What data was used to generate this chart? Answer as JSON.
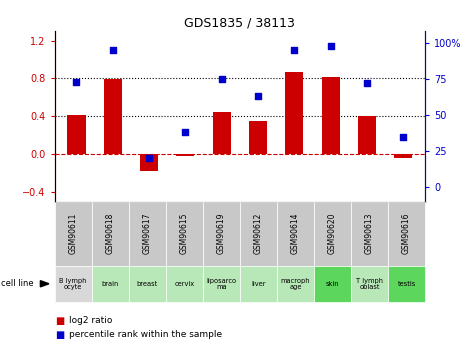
{
  "title": "GDS1835 / 38113",
  "samples": [
    "GSM90611",
    "GSM90618",
    "GSM90617",
    "GSM90615",
    "GSM90619",
    "GSM90612",
    "GSM90614",
    "GSM90620",
    "GSM90613",
    "GSM90616"
  ],
  "cell_lines": [
    "B lymph\nocyte",
    "brain",
    "breast",
    "cervix",
    "liposarco\nma",
    "liver",
    "macroph\nage",
    "skin",
    "T lymph\noblast",
    "testis"
  ],
  "cell_line_colors": [
    "#d8d8d8",
    "#b8e8b8",
    "#b8e8b8",
    "#b8e8b8",
    "#b8e8b8",
    "#b8e8b8",
    "#b8e8b8",
    "#5cd65c",
    "#b8e8b8",
    "#5cd65c"
  ],
  "log2_ratio": [
    0.42,
    0.79,
    -0.18,
    -0.02,
    0.45,
    0.35,
    0.87,
    0.82,
    0.4,
    -0.04
  ],
  "percentile_rank": [
    73,
    95,
    20,
    38,
    75,
    63,
    95,
    98,
    72,
    35
  ],
  "bar_color": "#cc0000",
  "dot_color": "#0000cc",
  "ylim_left": [
    -0.5,
    1.3
  ],
  "ylim_right": [
    -10.42,
    108.33
  ],
  "yticks_left": [
    -0.4,
    0.0,
    0.4,
    0.8,
    1.2
  ],
  "yticks_right": [
    0,
    25,
    50,
    75,
    100
  ],
  "hlines_dotted": [
    0.4,
    0.8
  ],
  "hline_dashed": 0.0,
  "gsm_bg": "#c8c8c8"
}
